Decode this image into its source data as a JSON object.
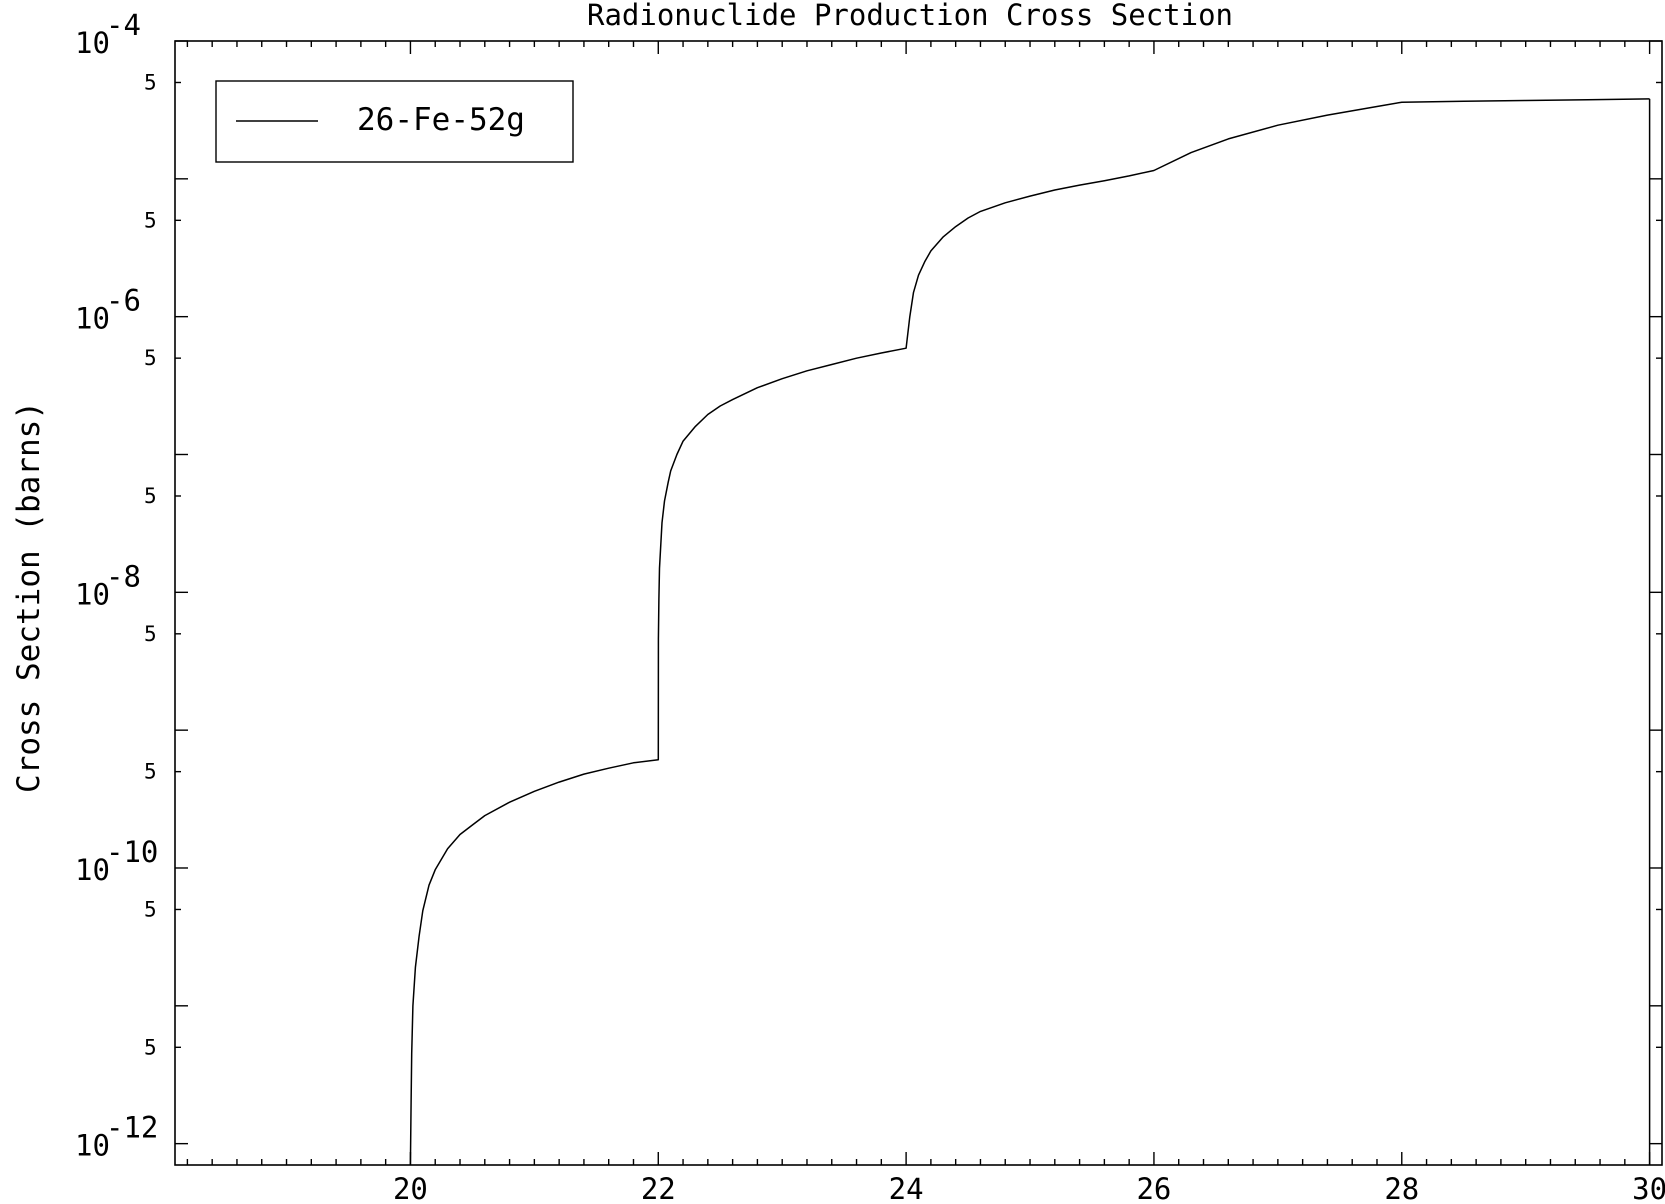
{
  "chart_data": {
    "type": "line",
    "title": "Radionuclide Production Cross Section",
    "xlabel": "",
    "ylabel": "Cross Section (barns)",
    "xlim": [
      18.1,
      30.1
    ],
    "ylim": [
      7e-13,
      0.0001
    ],
    "yscale": "log",
    "grid": false,
    "legend_position": "top-left",
    "x_ticks": [
      {
        "value": 20,
        "label": "20"
      },
      {
        "value": 22,
        "label": "22"
      },
      {
        "value": 24,
        "label": "24"
      },
      {
        "value": 26,
        "label": "26"
      },
      {
        "value": 28,
        "label": "28"
      },
      {
        "value": 30,
        "label": "30"
      }
    ],
    "y_major_ticks": [
      {
        "value": 1e-12,
        "base": "10",
        "exp": "-12"
      },
      {
        "value": 1e-10,
        "base": "10",
        "exp": "-10"
      },
      {
        "value": 1e-08,
        "base": "10",
        "exp": "-8"
      },
      {
        "value": 1e-06,
        "base": "10",
        "exp": "-6"
      },
      {
        "value": 0.0001,
        "base": "10",
        "exp": "-4"
      }
    ],
    "y_minor_labels": [
      {
        "value": 5e-12,
        "label": "5"
      },
      {
        "value": 5e-11,
        "label": "5"
      },
      {
        "value": 5e-10,
        "label": "5"
      },
      {
        "value": 5e-09,
        "label": "5"
      },
      {
        "value": 5e-08,
        "label": "5"
      },
      {
        "value": 5e-07,
        "label": "5"
      },
      {
        "value": 5e-06,
        "label": "5"
      },
      {
        "value": 5e-05,
        "label": "5"
      }
    ],
    "series": [
      {
        "name": "26-Fe-52g",
        "color": "#000000",
        "x": [
          20.0,
          20.005,
          20.01,
          20.02,
          20.04,
          20.07,
          20.1,
          20.15,
          20.2,
          20.3,
          20.4,
          20.5,
          20.6,
          20.8,
          21.0,
          21.2,
          21.4,
          21.6,
          21.8,
          22.0,
          22.001,
          22.005,
          22.01,
          22.03,
          22.05,
          22.08,
          22.1,
          22.15,
          22.2,
          22.3,
          22.4,
          22.5,
          22.6,
          22.8,
          23.0,
          23.2,
          23.4,
          23.6,
          23.8,
          24.0,
          24.03,
          24.06,
          24.1,
          24.15,
          24.2,
          24.3,
          24.4,
          24.5,
          24.6,
          24.8,
          25.0,
          25.2,
          25.4,
          25.6,
          25.8,
          26.0,
          26.3,
          26.6,
          27.0,
          27.4,
          27.8,
          28.0,
          28.5,
          29.0,
          29.5,
          30.0
        ],
        "y": [
          7e-13,
          2e-12,
          4.5e-12,
          1e-11,
          1.9e-11,
          3.2e-11,
          4.9e-11,
          7.5e-11,
          9.7e-11,
          1.38e-10,
          1.75e-10,
          2.05e-10,
          2.4e-10,
          3e-10,
          3.6e-10,
          4.2e-10,
          4.8e-10,
          5.3e-10,
          5.8e-10,
          6.1e-10,
          4.6e-09,
          9e-09,
          1.5e-08,
          3.2e-08,
          4.6e-08,
          6.3e-08,
          7.6e-08,
          1e-07,
          1.25e-07,
          1.6e-07,
          1.95e-07,
          2.25e-07,
          2.5e-07,
          3.05e-07,
          3.55e-07,
          4.05e-07,
          4.5e-07,
          5e-07,
          5.45e-07,
          5.9e-07,
          1e-06,
          1.5e-06,
          2e-06,
          2.5e-06,
          3e-06,
          3.8e-06,
          4.5e-06,
          5.2e-06,
          5.8e-06,
          6.7e-06,
          7.5e-06,
          8.3e-06,
          9e-06,
          9.7e-06,
          1.05e-05,
          1.15e-05,
          1.55e-05,
          1.95e-05,
          2.45e-05,
          2.9e-05,
          3.35e-05,
          3.6e-05,
          3.65e-05,
          3.7e-05,
          3.75e-05,
          3.8e-05
        ]
      }
    ]
  }
}
